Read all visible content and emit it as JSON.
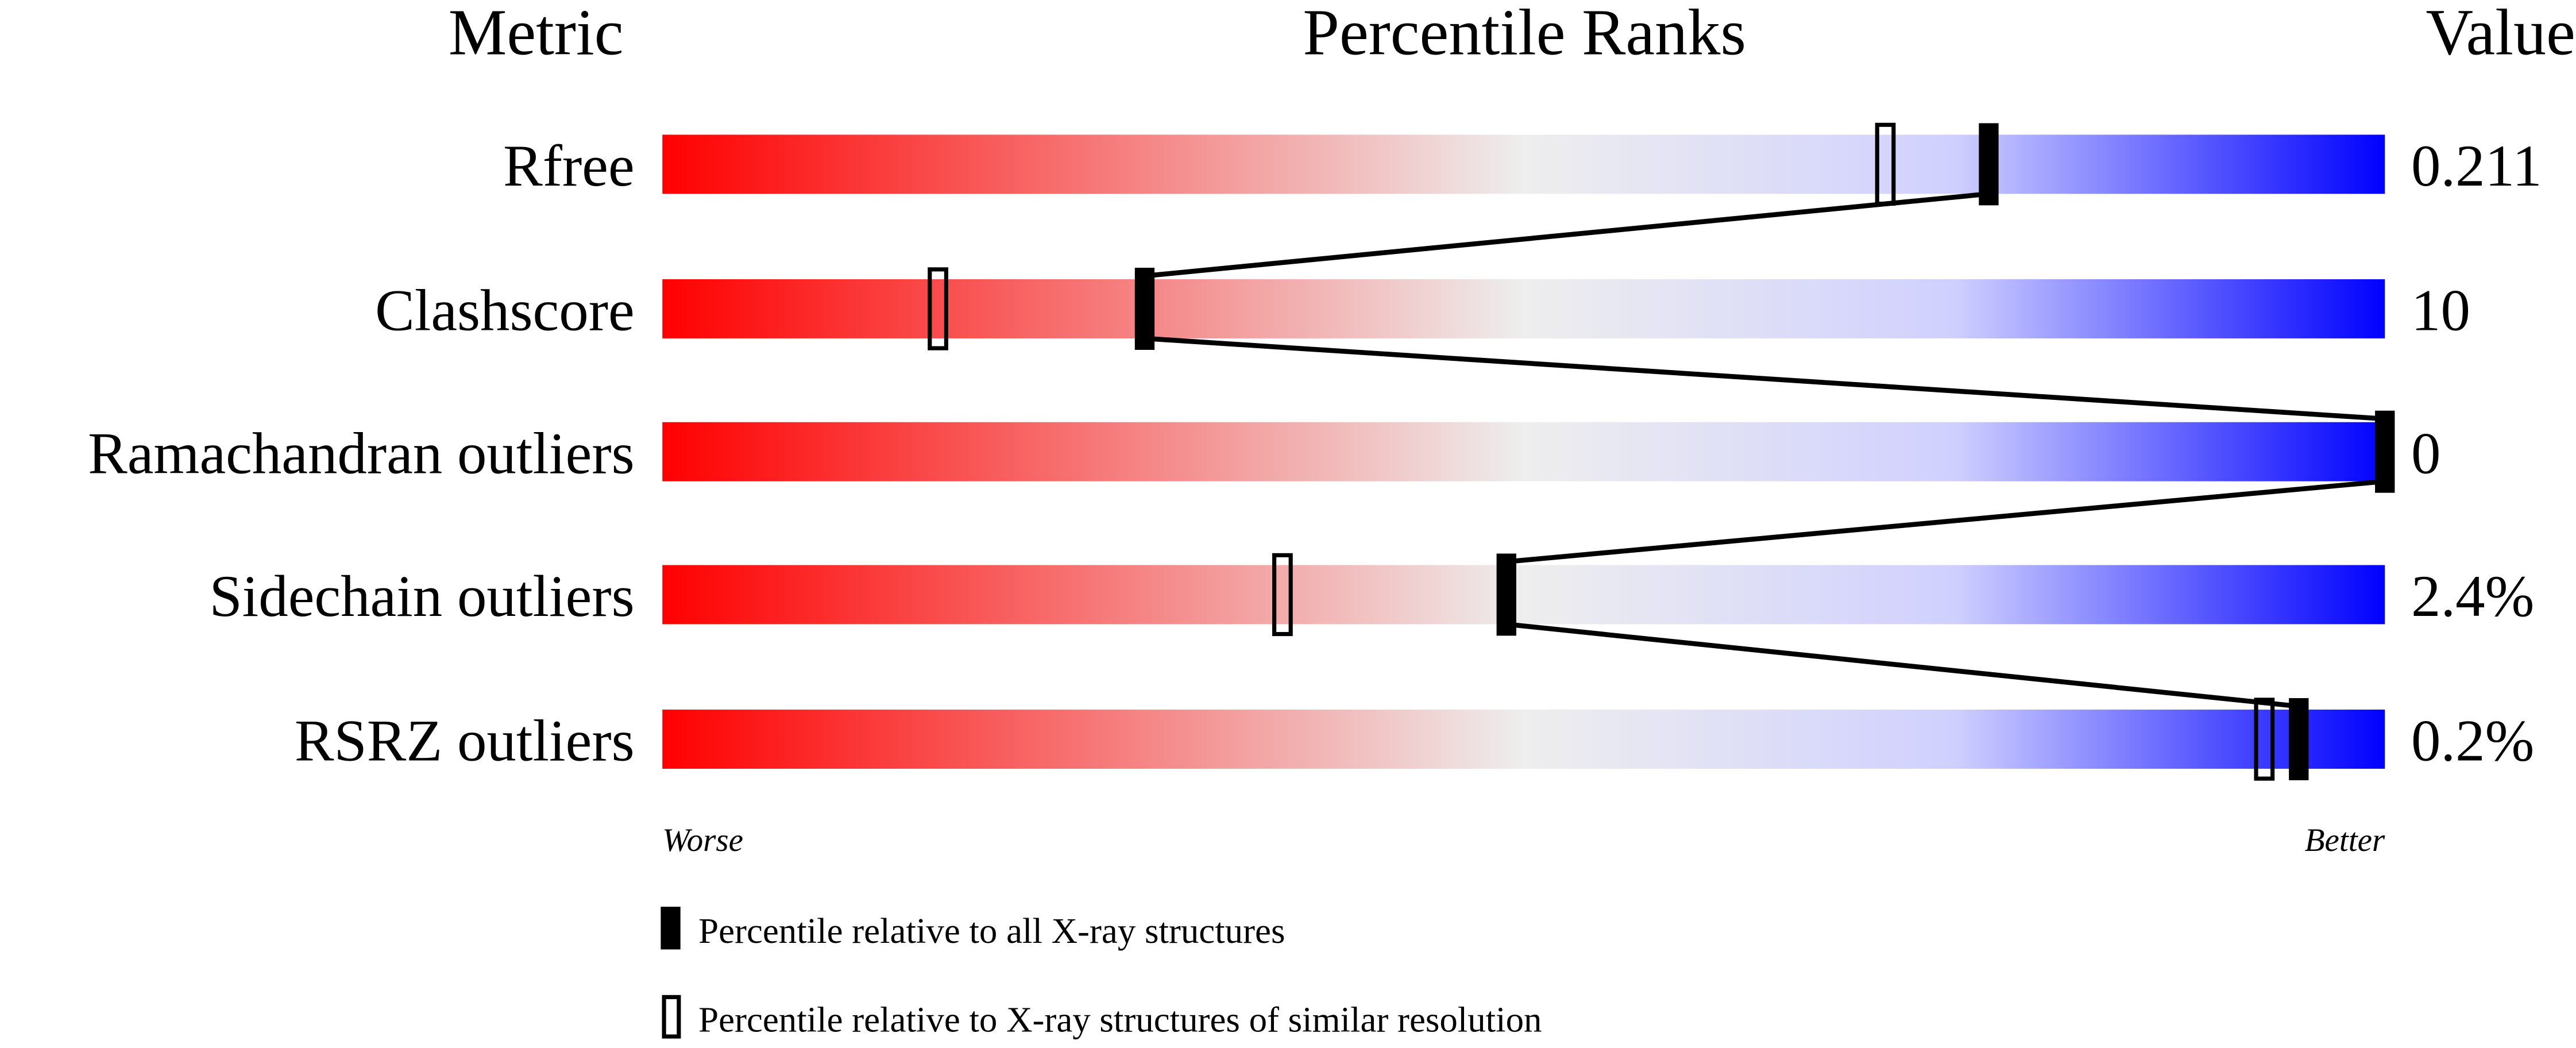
{
  "chart_data": {
    "type": "percentile-bar",
    "headers": {
      "metric": "Metric",
      "ranks": "Percentile Ranks",
      "value": "Value"
    },
    "xlim": [
      0,
      100
    ],
    "axis_labels": {
      "left": "Worse",
      "right": "Better"
    },
    "gradient_colors": {
      "worse": "#ff0000",
      "middle": "#eeeeee",
      "better": "#0000ff"
    },
    "rows": [
      {
        "metric": "Rfree",
        "value": "0.211",
        "percentile_all": 77,
        "percentile_similar": 71
      },
      {
        "metric": "Clashscore",
        "value": "10",
        "percentile_all": 28,
        "percentile_similar": 16
      },
      {
        "metric": "Ramachandran outliers",
        "value": "0",
        "percentile_all": 100,
        "percentile_similar": 100
      },
      {
        "metric": "Sidechain outliers",
        "value": "2.4%",
        "percentile_all": 49,
        "percentile_similar": 36
      },
      {
        "metric": "RSRZ outliers",
        "value": "0.2%",
        "percentile_all": 95,
        "percentile_similar": 93
      }
    ],
    "legend": [
      {
        "marker": "filled",
        "label": "Percentile relative to all X-ray structures"
      },
      {
        "marker": "open",
        "label": "Percentile relative to X-ray structures of similar resolution"
      }
    ]
  }
}
